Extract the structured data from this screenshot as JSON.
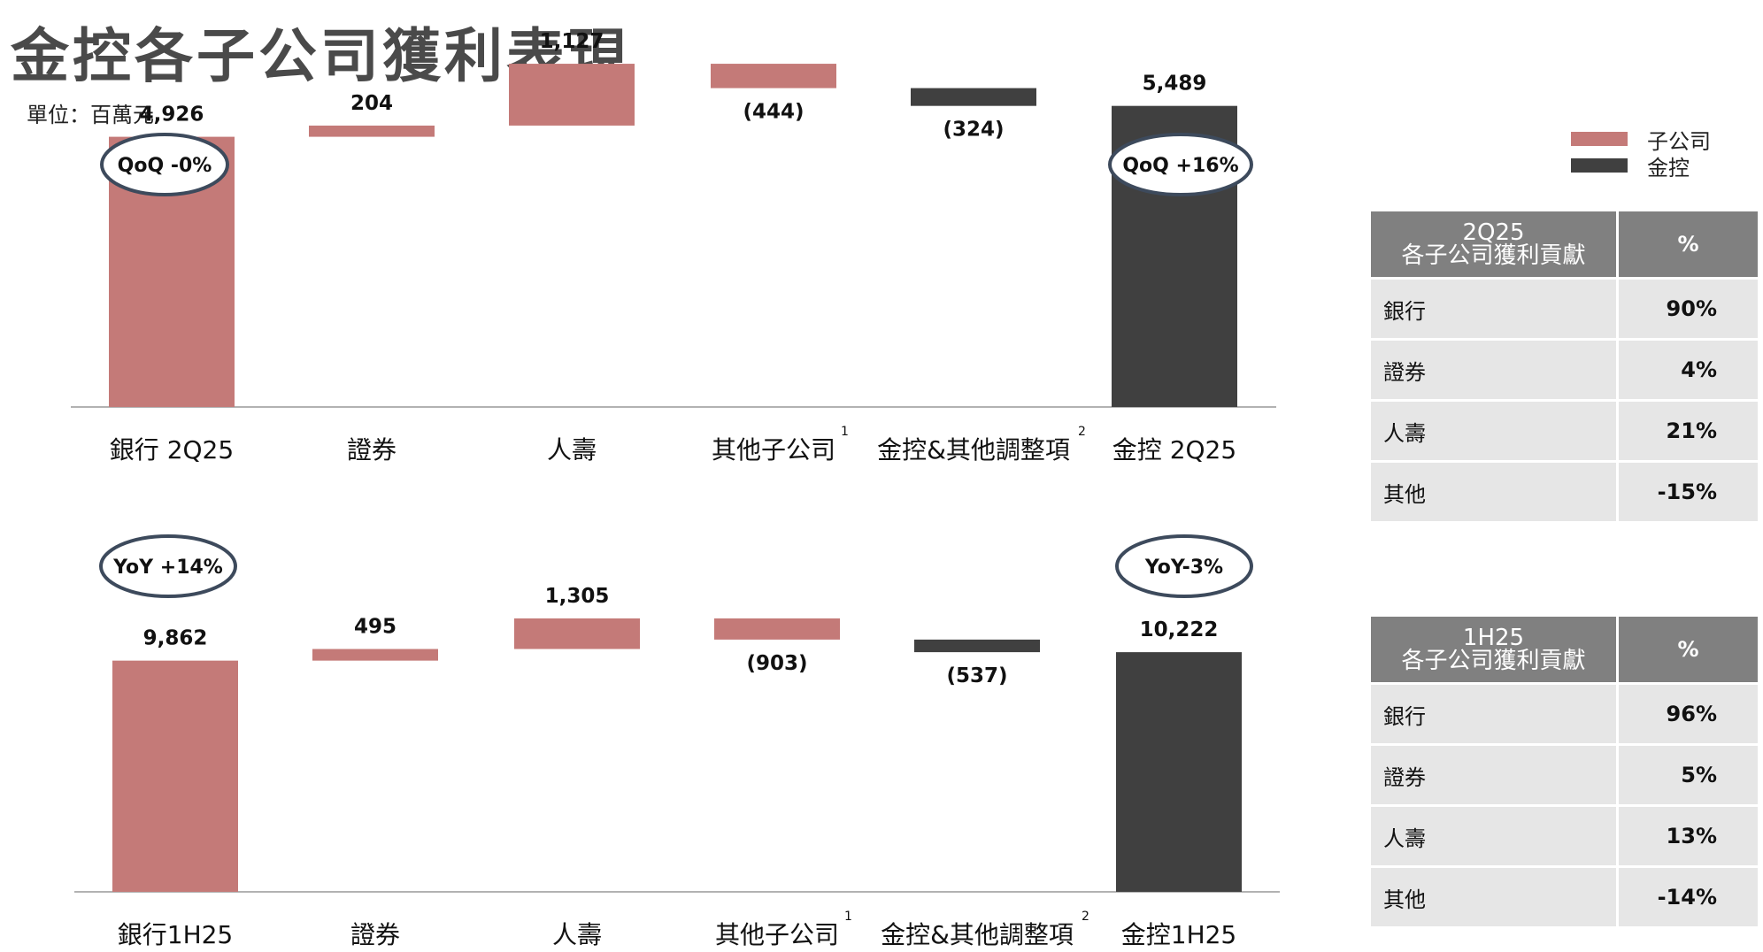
{
  "header": {
    "title": "金控各子公司獲利表現",
    "unit": "單位：百萬元"
  },
  "legend": [
    {
      "label": "子公司",
      "color": "#c47a78"
    },
    {
      "label": "金控",
      "color": "#404040"
    }
  ],
  "colors": {
    "subsidiary": "#c47a78",
    "holding": "#404040",
    "axis": "#999999",
    "bubble_border": "#3d4a5c"
  },
  "chart_data": [
    {
      "type": "bar",
      "subtype": "waterfall",
      "categories": [
        "銀行 2Q25",
        "證券",
        "人壽",
        "其他子公司",
        "金控&其他調整項",
        "金控 2Q25"
      ],
      "category_superscripts": [
        "",
        "",
        "",
        "1",
        "2",
        ""
      ],
      "values": [
        4926,
        204,
        1127,
        -444,
        -324,
        5489
      ],
      "value_labels": [
        "4,926",
        "204",
        "1,127",
        "(444)",
        "(324)",
        "5,489"
      ],
      "kinds": [
        "total",
        "delta",
        "delta",
        "delta",
        "delta",
        "total"
      ],
      "delta_colors": [
        "subsidiary",
        "subsidiary",
        "subsidiary",
        "subsidiary",
        "holding",
        "holding"
      ],
      "ylim": [
        0,
        6000
      ],
      "annotations": [
        "QoQ -0%",
        "QoQ +16%"
      ]
    },
    {
      "type": "bar",
      "subtype": "waterfall",
      "categories": [
        "銀行1H25",
        "證券",
        "人壽",
        "其他子公司",
        "金控&其他調整項",
        "金控1H25"
      ],
      "category_superscripts": [
        "",
        "",
        "",
        "1",
        "2",
        ""
      ],
      "values": [
        9862,
        495,
        1305,
        -903,
        -537,
        10222
      ],
      "value_labels": [
        "9,862",
        "495",
        "1,305",
        "(903)",
        "(537)",
        "10,222"
      ],
      "kinds": [
        "total",
        "delta",
        "delta",
        "delta",
        "delta",
        "total"
      ],
      "delta_colors": [
        "subsidiary",
        "subsidiary",
        "subsidiary",
        "subsidiary",
        "holding",
        "holding"
      ],
      "ylim": [
        0,
        12000
      ],
      "annotations": [
        "YoY +14%",
        "YoY-3%"
      ]
    }
  ],
  "tables": [
    {
      "period": "2Q25",
      "subtitle": "各子公司獲利貢獻",
      "pct_header": "%",
      "rows": [
        {
          "label": "銀行",
          "value": "90%"
        },
        {
          "label": "證券",
          "value": "4%"
        },
        {
          "label": "人壽",
          "value": "21%"
        },
        {
          "label": "其他",
          "value": "-15%"
        }
      ]
    },
    {
      "period": "1H25",
      "subtitle": "各子公司獲利貢獻",
      "pct_header": "%",
      "rows": [
        {
          "label": "銀行",
          "value": "96%"
        },
        {
          "label": "證券",
          "value": "5%"
        },
        {
          "label": "人壽",
          "value": "13%"
        },
        {
          "label": "其他",
          "value": "-14%"
        }
      ]
    }
  ]
}
